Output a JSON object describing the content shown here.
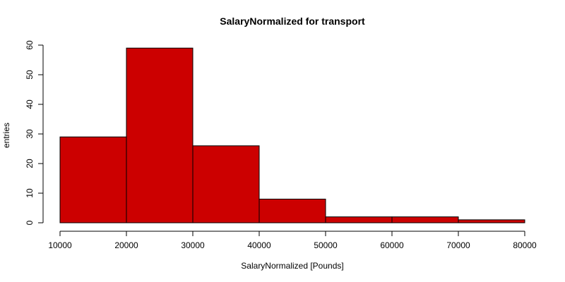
{
  "chart_data": {
    "type": "bar",
    "title": "SalaryNormalized for transport",
    "xlabel": "SalaryNormalized [Pounds]",
    "ylabel": "entries",
    "bins": [
      {
        "from": 10000,
        "to": 20000,
        "count": 29
      },
      {
        "from": 20000,
        "to": 30000,
        "count": 59
      },
      {
        "from": 30000,
        "to": 40000,
        "count": 26
      },
      {
        "from": 40000,
        "to": 50000,
        "count": 8
      },
      {
        "from": 50000,
        "to": 60000,
        "count": 2
      },
      {
        "from": 60000,
        "to": 70000,
        "count": 2
      },
      {
        "from": 70000,
        "to": 80000,
        "count": 1
      }
    ],
    "xlim": [
      10000,
      80000
    ],
    "ylim": [
      0,
      60
    ],
    "x_ticks": [
      10000,
      20000,
      30000,
      40000,
      50000,
      60000,
      70000,
      80000
    ],
    "y_ticks": [
      0,
      10,
      20,
      30,
      40,
      50,
      60
    ],
    "bar_color": "#cc0000",
    "bar_border_color": "#000000",
    "grid": false,
    "legend": "none"
  }
}
